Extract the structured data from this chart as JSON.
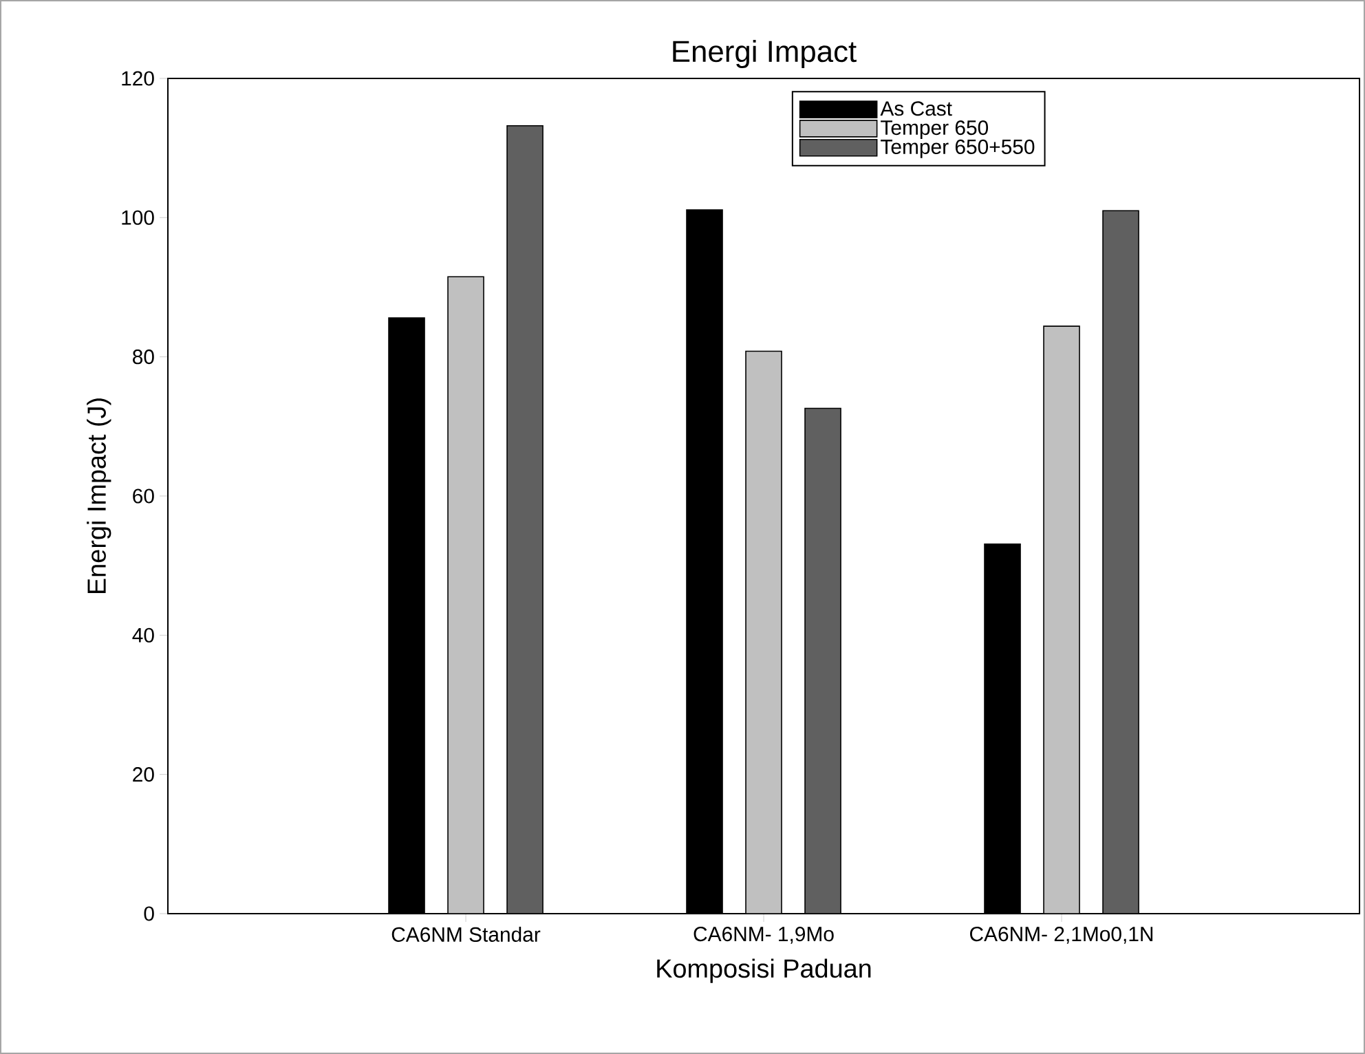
{
  "chart_data": {
    "type": "bar",
    "title": "Energi Impact",
    "xlabel": "Komposisi Paduan",
    "ylabel": "Energi Impact (J)",
    "categories": [
      "CA6NM Standar",
      "CA6NM- 1,9Mo",
      "CA6NM- 2,1Mo0,1N"
    ],
    "series": [
      {
        "name": "As Cast",
        "color": "#000000",
        "values": [
          85.6,
          101.1,
          53.1
        ]
      },
      {
        "name": "Temper 650",
        "color": "#c0c0c0",
        "values": [
          91.5,
          80.8,
          84.4
        ]
      },
      {
        "name": "Temper 650+550",
        "color": "#606060",
        "values": [
          113.2,
          72.6,
          101
        ]
      }
    ],
    "ylim": [
      0,
      120
    ],
    "yticks": [
      0,
      20,
      40,
      60,
      80,
      100,
      120
    ],
    "grid": false,
    "legend": "top"
  }
}
